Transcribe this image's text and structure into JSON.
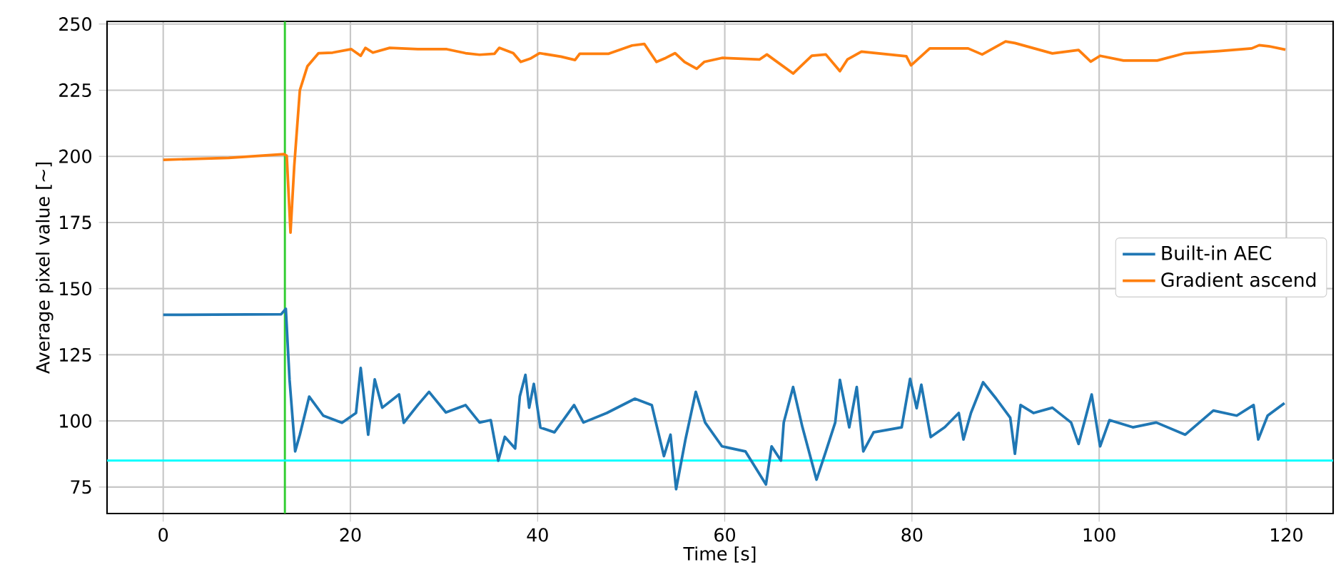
{
  "chart_data": {
    "type": "line",
    "xlabel": "Time [s]",
    "ylabel": "Average pixel value [~]",
    "xlim": [
      -6,
      125
    ],
    "ylim": [
      65,
      251
    ],
    "xticks": [
      0,
      20,
      40,
      60,
      80,
      100,
      120
    ],
    "yticks": [
      75,
      100,
      125,
      150,
      175,
      200,
      225,
      250
    ],
    "grid": true,
    "legend": "right",
    "line_style": "solid",
    "series": [
      {
        "name": "Built-in AEC",
        "color": "#1f77b4",
        "x": [
          0,
          12.6,
          13.1,
          13.5,
          14.1,
          14.6,
          15.6,
          17.1,
          19.1,
          20.6,
          21.1,
          21.9,
          22.6,
          23.4,
          25.2,
          25.7,
          27.2,
          28.4,
          30.2,
          32.3,
          33.8,
          35.0,
          35.8,
          36.5,
          37.6,
          38.1,
          38.7,
          39.1,
          39.6,
          40.3,
          41.8,
          43.9,
          44.9,
          47.4,
          50.4,
          52.2,
          53.5,
          54.2,
          54.8,
          55.8,
          56.9,
          57.9,
          59.7,
          62.2,
          64.4,
          65.0,
          66.0,
          66.3,
          67.3,
          68.3,
          69.8,
          70.8,
          71.8,
          72.3,
          73.3,
          74.1,
          74.8,
          75.9,
          78.9,
          79.8,
          80.5,
          81.0,
          82.0,
          83.5,
          85.0,
          85.5,
          86.3,
          87.6,
          89.0,
          90.5,
          91.0,
          91.6,
          93.0,
          95.0,
          97.0,
          97.8,
          99.2,
          100.1,
          101.1,
          103.6,
          106.1,
          109.2,
          112.2,
          114.7,
          116.5,
          117.0,
          118.0,
          119.8
        ],
        "values": [
          140.1,
          140.3,
          142.4,
          115.5,
          88.5,
          94.8,
          109.2,
          102,
          99.3,
          103,
          120,
          94.8,
          115.7,
          105,
          110,
          99.3,
          106,
          111,
          103.2,
          106,
          99.4,
          100.3,
          85,
          94,
          89.6,
          109.3,
          117.4,
          105,
          114,
          97.5,
          95.7,
          106,
          99.4,
          103,
          108.4,
          106,
          86.7,
          94.8,
          74.2,
          93,
          111,
          99.4,
          90.4,
          88.5,
          76,
          90.4,
          85,
          99.4,
          112.8,
          97.6,
          77.8,
          88.5,
          99.4,
          115.5,
          97.6,
          112.8,
          88.5,
          95.7,
          97.6,
          115.9,
          104.8,
          113.7,
          93.9,
          97.6,
          103,
          93,
          103,
          114.6,
          108.4,
          101.2,
          87.6,
          106,
          103,
          105,
          99.4,
          91.3,
          110,
          90.4,
          100.3,
          97.6,
          99.4,
          94.8,
          103.9,
          102,
          106,
          93,
          102,
          106.7
        ]
      },
      {
        "name": "Gradient ascend",
        "color": "#ff7f0e",
        "x": [
          0,
          7.0,
          12.9,
          13.2,
          13.6,
          14.0,
          14.6,
          15.4,
          16.6,
          18.1,
          20.1,
          21.1,
          21.6,
          22.4,
          24.2,
          27.2,
          30.3,
          32.3,
          33.8,
          35.4,
          35.9,
          37.4,
          38.2,
          39.2,
          40.2,
          42.5,
          44.0,
          44.5,
          47.6,
          50.1,
          51.4,
          52.7,
          53.7,
          54.7,
          55.7,
          57.0,
          57.8,
          59.7,
          63.7,
          64.5,
          67.3,
          69.3,
          70.8,
          72.3,
          73.1,
          74.6,
          79.4,
          79.9,
          81.9,
          86.0,
          87.5,
          90.0,
          91.0,
          95.0,
          97.8,
          99.1,
          100.1,
          102.6,
          106.2,
          109.2,
          112.8,
          116.3,
          117.1,
          118.3,
          119.9
        ],
        "values": [
          198.7,
          199.4,
          200.8,
          200.2,
          171.2,
          196.3,
          225,
          234,
          239,
          239.2,
          240.5,
          238,
          241,
          239.2,
          241,
          240.5,
          240.5,
          239,
          238.4,
          238.8,
          241,
          239,
          235.7,
          236.9,
          239,
          237.7,
          236.4,
          238.8,
          238.8,
          241.9,
          242.5,
          235.7,
          237.2,
          239,
          235.7,
          233.1,
          235.7,
          237.2,
          236.6,
          238.5,
          231.3,
          238,
          238.5,
          232.2,
          236.6,
          239.6,
          237.8,
          234.4,
          240.8,
          240.8,
          238.5,
          243.4,
          242.8,
          238.9,
          240.2,
          235.8,
          238,
          236.2,
          236.2,
          239,
          239.8,
          240.8,
          242,
          241.5,
          240.3
        ]
      }
    ],
    "ref_lines": [
      {
        "axis": "x",
        "value": 13,
        "color": "#32cd32"
      },
      {
        "axis": "y",
        "value": 85,
        "color": "#00ffff"
      }
    ]
  }
}
